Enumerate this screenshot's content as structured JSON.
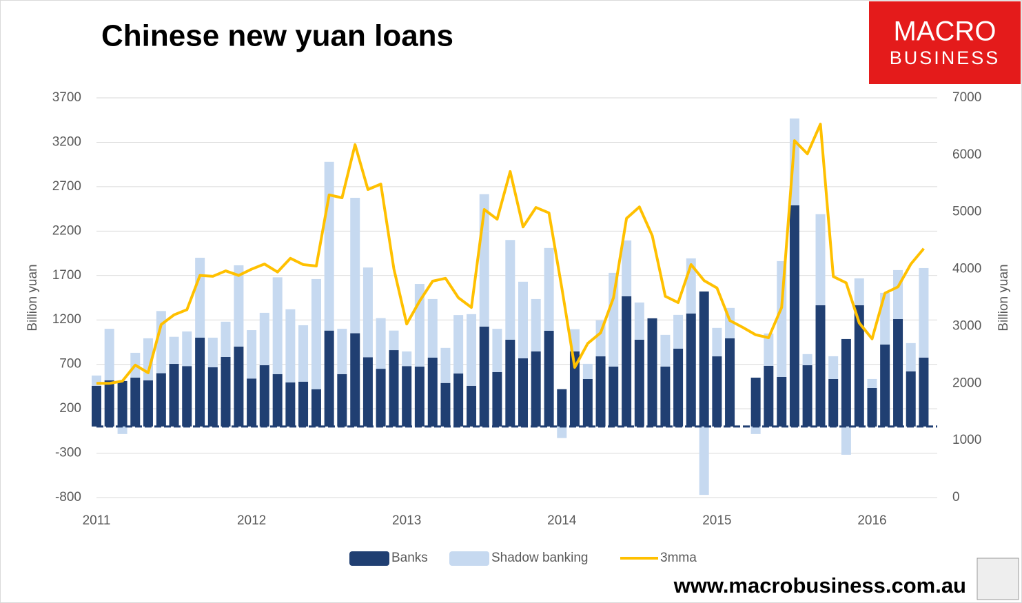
{
  "chart_data": {
    "type": "bar",
    "stacked": true,
    "title": "Chinese new yuan loans",
    "y_label": "Billion yuan",
    "y2_label": "Billion yuan",
    "x": [
      2011,
      2011.083,
      2011.167,
      2011.25,
      2011.333,
      2011.417,
      2011.5,
      2011.583,
      2011.667,
      2011.75,
      2011.833,
      2011.917,
      2012,
      2012.083,
      2012.167,
      2012.25,
      2012.333,
      2012.417,
      2012.5,
      2012.583,
      2012.667,
      2012.75,
      2012.833,
      2012.917,
      2013,
      2013.083,
      2013.167,
      2013.25,
      2013.333,
      2013.417,
      2013.5,
      2013.583,
      2013.667,
      2013.75,
      2013.833,
      2013.917,
      2014,
      2014.083,
      2014.167,
      2014.25,
      2014.333,
      2014.417,
      2014.5,
      2014.583,
      2014.667,
      2014.75,
      2014.833,
      2014.917,
      2015,
      2015.083,
      2015.167,
      2015.25,
      2015.333,
      2015.417,
      2015.5,
      2015.583,
      2015.667,
      2015.75,
      2015.833,
      2015.917,
      2016,
      2016.083,
      2016.167,
      2016.25,
      2016.333
    ],
    "xlim": [
      2011,
      2016.42
    ],
    "xticks": [
      2011,
      2012,
      2013,
      2014,
      2015,
      2016
    ],
    "ylim": [
      -800,
      3700
    ],
    "yticks": [
      -800,
      -300,
      200,
      700,
      1200,
      1700,
      2200,
      2700,
      3200,
      3700
    ],
    "y2lim": [
      0,
      7000
    ],
    "y2ticks": [
      0,
      1000,
      2000,
      3000,
      4000,
      5000,
      6000,
      7000
    ],
    "grid": true,
    "series": [
      {
        "name": "Banks",
        "color": "#203f72",
        "values": [
          458,
          520,
          512,
          550,
          520,
          600,
          705,
          680,
          1000,
          667,
          783,
          900,
          540,
          690,
          590,
          497,
          505,
          420,
          1080,
          590,
          1050,
          780,
          650,
          860,
          680,
          675,
          775,
          490,
          597,
          458,
          1125,
          613,
          977,
          768,
          845,
          1078,
          420,
          845,
          535,
          790,
          675,
          1466,
          977,
          1218,
          675,
          877,
          1272,
          1520,
          790,
          993,
          null,
          550,
          683,
          558,
          2490,
          690,
          1365,
          535,
          985,
          1365,
          434,
          923,
          1210,
          621,
          776
        ]
      },
      {
        "name": "Shadow banking",
        "color": "#c6d9f0",
        "values": [
          116,
          580,
          -85,
          280,
          473,
          700,
          305,
          390,
          900,
          333,
          397,
          915,
          545,
          590,
          1090,
          823,
          635,
          1240,
          1900,
          510,
          1525,
          1010,
          570,
          220,
          165,
          930,
          660,
          395,
          658,
          807,
          1490,
          487,
          1123,
          862,
          590,
          932,
          -130,
          250,
          171,
          405,
          1055,
          629,
          419,
          0,
          357,
          380,
          621,
          -770,
          320,
          342,
          null,
          -85,
          364,
          1304,
          978,
          125,
          1025,
          256,
          -318,
          303,
          101,
          582,
          551,
          318,
          1008
        ]
      },
      {
        "name": "3mma",
        "color": "#ffc000",
        "type": "line",
        "axis": "y2",
        "values": [
          2000,
          2000,
          2040,
          2320,
          2185,
          3030,
          3200,
          3290,
          3890,
          3875,
          3970,
          3890,
          4000,
          4090,
          3950,
          4190,
          4080,
          4055,
          5300,
          5250,
          6180,
          5395,
          5490,
          4007,
          3040,
          3440,
          3790,
          3840,
          3500,
          3330,
          5045,
          4875,
          5710,
          4740,
          5080,
          4985,
          3670,
          2280,
          2700,
          2885,
          3500,
          4890,
          5090,
          4585,
          3525,
          3415,
          4080,
          3800,
          3670,
          3100,
          2980,
          2850,
          2800,
          3330,
          6250,
          6020,
          6540,
          3870,
          3760,
          3060,
          2780,
          3580,
          3690,
          4090,
          4360
        ]
      }
    ]
  },
  "logo": {
    "line1": "MACRO",
    "line2": "BUSINESS"
  },
  "footer": "www.macrobusiness.com.au"
}
